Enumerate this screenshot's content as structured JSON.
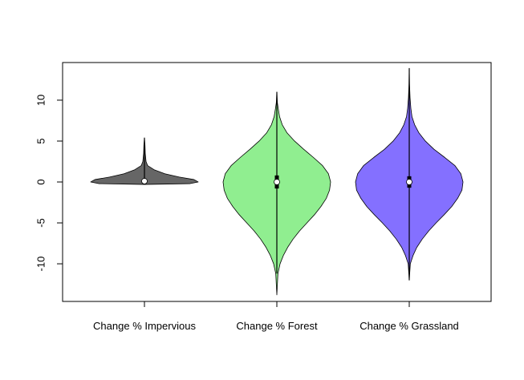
{
  "chart_data": {
    "type": "violin",
    "title": "",
    "xlabel": "",
    "ylabel": "",
    "ylim": [
      -14.6,
      14.6
    ],
    "yticks": [
      -10,
      -5,
      0,
      5,
      10
    ],
    "ytick_labels": [
      "-10",
      "-5",
      "0",
      "5",
      "10"
    ],
    "categories": [
      "Change % Impervious",
      "Change % Forest",
      "Change % Grassland"
    ],
    "series": [
      {
        "category": "Change % Impervious",
        "color": "#666666",
        "median": 0.1,
        "q1": -0.1,
        "q3": 0.3,
        "whisker_low": -0.3,
        "whisker_high": 5.4,
        "min": -0.3,
        "max": 5.4,
        "density": [
          [
            -0.3,
            0.0
          ],
          [
            -0.2,
            0.85
          ],
          [
            0.0,
            1.0
          ],
          [
            0.3,
            0.92
          ],
          [
            0.6,
            0.65
          ],
          [
            1.0,
            0.38
          ],
          [
            1.5,
            0.18
          ],
          [
            2.0,
            0.06
          ],
          [
            2.5,
            0.03
          ],
          [
            3.5,
            0.015
          ],
          [
            4.5,
            0.01
          ],
          [
            5.4,
            0.0
          ]
        ]
      },
      {
        "category": "Change % Forest",
        "color": "#90ee90",
        "median": 0.0,
        "q1": -0.8,
        "q3": 0.8,
        "whisker_low": -11.2,
        "whisker_high": 11.0,
        "min": -13.8,
        "max": 11.0,
        "density": [
          [
            -13.8,
            0.0
          ],
          [
            -11.2,
            0.02
          ],
          [
            -10.0,
            0.06
          ],
          [
            -9.0,
            0.12
          ],
          [
            -8.0,
            0.2
          ],
          [
            -7.0,
            0.3
          ],
          [
            -6.0,
            0.42
          ],
          [
            -5.0,
            0.56
          ],
          [
            -4.0,
            0.7
          ],
          [
            -3.0,
            0.82
          ],
          [
            -2.0,
            0.92
          ],
          [
            -1.0,
            0.98
          ],
          [
            0.0,
            1.0
          ],
          [
            1.0,
            0.96
          ],
          [
            2.0,
            0.85
          ],
          [
            3.0,
            0.68
          ],
          [
            4.0,
            0.5
          ],
          [
            5.0,
            0.33
          ],
          [
            6.0,
            0.19
          ],
          [
            7.0,
            0.1
          ],
          [
            8.0,
            0.05
          ],
          [
            9.0,
            0.025
          ],
          [
            9.7,
            0.01
          ],
          [
            11.0,
            0.0
          ]
        ]
      },
      {
        "category": "Change % Grassland",
        "color": "#8470ff",
        "median": 0.0,
        "q1": -0.7,
        "q3": 0.7,
        "whisker_low": -12.0,
        "whisker_high": 13.9,
        "min": -12.0,
        "max": 13.9,
        "density": [
          [
            -12.0,
            0.0
          ],
          [
            -10.0,
            0.02
          ],
          [
            -9.0,
            0.07
          ],
          [
            -8.0,
            0.14
          ],
          [
            -7.0,
            0.24
          ],
          [
            -6.0,
            0.36
          ],
          [
            -5.0,
            0.5
          ],
          [
            -4.0,
            0.65
          ],
          [
            -3.0,
            0.79
          ],
          [
            -2.0,
            0.9
          ],
          [
            -1.0,
            0.98
          ],
          [
            0.0,
            1.0
          ],
          [
            1.0,
            0.96
          ],
          [
            2.0,
            0.85
          ],
          [
            3.0,
            0.66
          ],
          [
            4.0,
            0.46
          ],
          [
            5.0,
            0.3
          ],
          [
            6.0,
            0.18
          ],
          [
            7.0,
            0.1
          ],
          [
            8.0,
            0.05
          ],
          [
            9.0,
            0.03
          ],
          [
            10.3,
            0.015
          ],
          [
            12.0,
            0.005
          ],
          [
            13.9,
            0.0
          ]
        ]
      }
    ]
  }
}
